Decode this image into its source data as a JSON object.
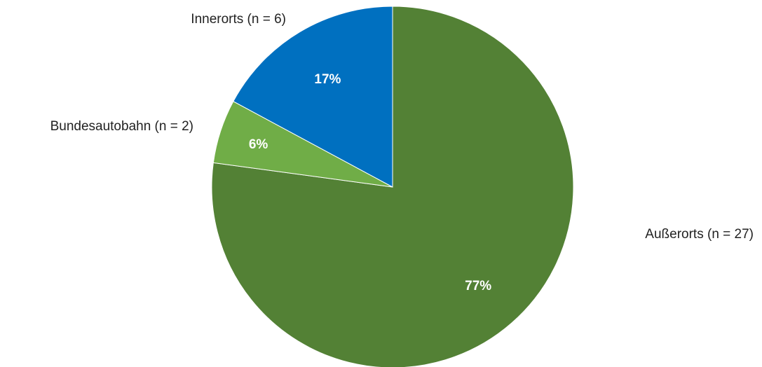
{
  "chart_data": {
    "type": "pie",
    "title": "",
    "legend": "none",
    "slices": [
      {
        "category": "Außerorts (n = 27)",
        "percent_label": "77%",
        "value": 27,
        "color": "#538135"
      },
      {
        "category": "Bundesautobahn (n = 2)",
        "percent_label": "6%",
        "value": 2,
        "color": "#70AD47"
      },
      {
        "category": "Innerorts (n = 6)",
        "percent_label": "17%",
        "value": 6,
        "color": "#0070C0"
      }
    ]
  }
}
